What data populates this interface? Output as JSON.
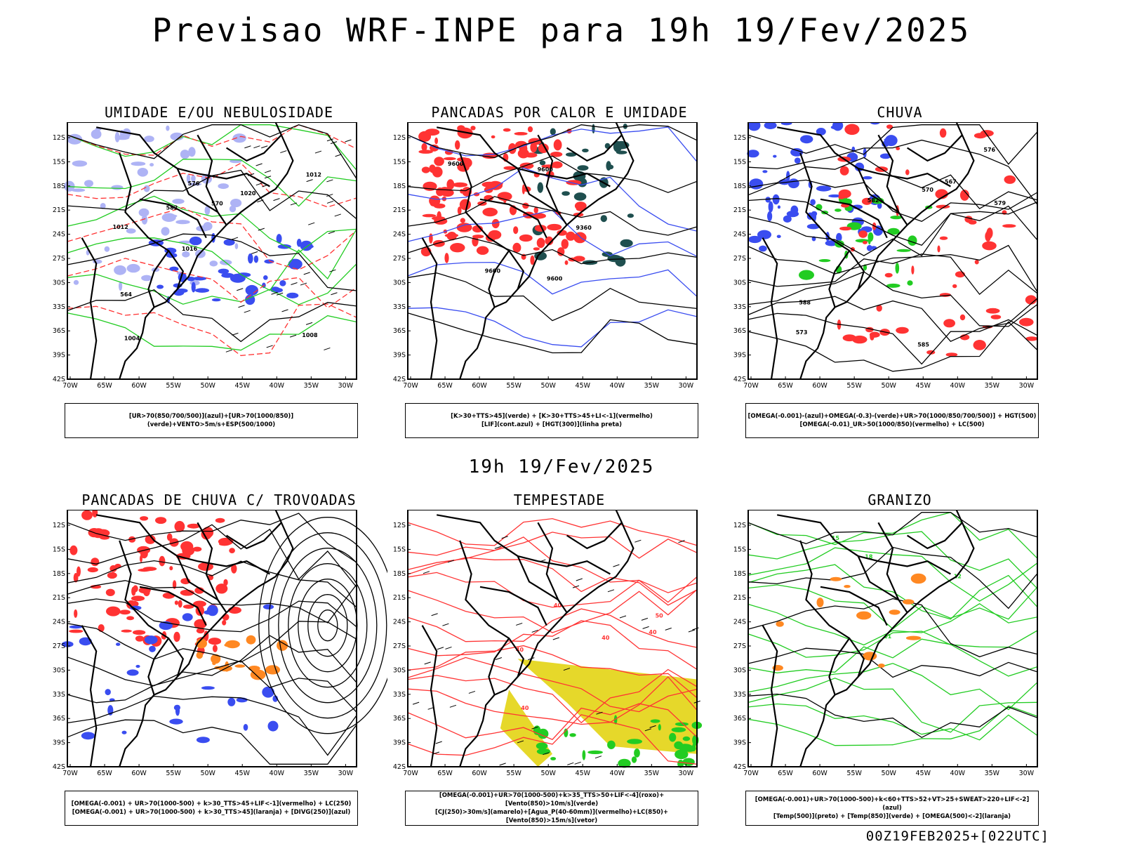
{
  "header": {
    "title": "Previsao WRF-INPE  para 19h 19/Fev/2025",
    "mid_title": "19h 19/Fev/2025",
    "footer": "00Z19FEB2025+[022UTC]"
  },
  "axes": {
    "lon_labels": [
      "70W",
      "65W",
      "60W",
      "55W",
      "50W",
      "45W",
      "40W",
      "35W",
      "30W"
    ],
    "lat_labels": [
      "12S",
      "15S",
      "18S",
      "21S",
      "24S",
      "27S",
      "30S",
      "33S",
      "36S",
      "39S",
      "42S"
    ]
  },
  "colors": {
    "blue": "#3a4df0",
    "lightblue": "#aeb3f5",
    "green": "#22cc22",
    "red": "#ff3333",
    "darkteal": "#1f4f4f",
    "yellow": "#e6d82a",
    "orange": "#ff8822",
    "purple": "#cc22cc"
  },
  "panels": [
    {
      "title": "UMIDADE E/OU NEBULOSIDADE",
      "legend": [
        "[UR>70(850/700/500)](azul)+[UR>70(1000/850)](verde)+VENTO>5m/s+ESP(500/1000)"
      ],
      "contour_labels": [
        "1008",
        "1012",
        "1012",
        "1016",
        "1020",
        "1004",
        "576",
        "570",
        "564",
        "582"
      ]
    },
    {
      "title": "PANCADAS POR CALOR E UMIDADE",
      "legend": [
        "[K>30+TTS>45](verde) + [K>30+TTS>45+LI<-1](vermelho)",
        "[LIF](cont.azul) + [HGT(300)](linha preta)"
      ],
      "contour_labels": [
        "9600",
        "9600",
        "9600",
        "9360",
        "9600"
      ]
    },
    {
      "title": "CHUVA",
      "legend": [
        "[OMEGA(-0.001)-(azul)+OMEGA(-0.3)-(verde)+UR>70(1000/850/700/500)] + HGT(500)",
        "[OMEGA(-0.01)_UR>50(1000/850)(vermelho) + LC(500)"
      ],
      "contour_labels": [
        "585",
        "582",
        "579",
        "576",
        "573",
        "570",
        "567",
        "588"
      ]
    },
    {
      "title": "PANCADAS DE CHUVA C/ TROVOADAS",
      "legend": [
        "[OMEGA(-0.001) + UR>70(1000-500) + k>30_TTS>45+LIF<-1](vermelho) + LC(250)",
        "[OMEGA(-0.001) + UR>70(1000-500) + k>30_TTS>45](laranja) + [DIVG(250)](azul)"
      ],
      "contour_labels": []
    },
    {
      "title": "TEMPESTADE",
      "legend": [
        "[OMEGA(-0.001)+UR>70(1000-500)+k>35_TTS>50+LIF<-4](roxo)+[Vento(850)>10m/s](verde)",
        "[CJ(250)>30m/s](amarelo)+[Agua_P(40-60mm)](vermelho)+LC(850)+[Vento(850)>15m/s](vetor)"
      ],
      "contour_labels": [
        "40",
        "40",
        "40",
        "50",
        "40",
        "40"
      ]
    },
    {
      "title": "GRANIZO",
      "legend": [
        "[OMEGA(-0.001)+UR>70(1000-500)+k<60+TTS>52+VT>25+SWEAT>220+LIF<-2](azul)",
        "[Temp(500)](preto) + [Temp(850)](verde) + [OMEGA(500)<-2](laranja)"
      ],
      "contour_labels": [
        "12",
        "21",
        "18",
        "15"
      ]
    }
  ]
}
